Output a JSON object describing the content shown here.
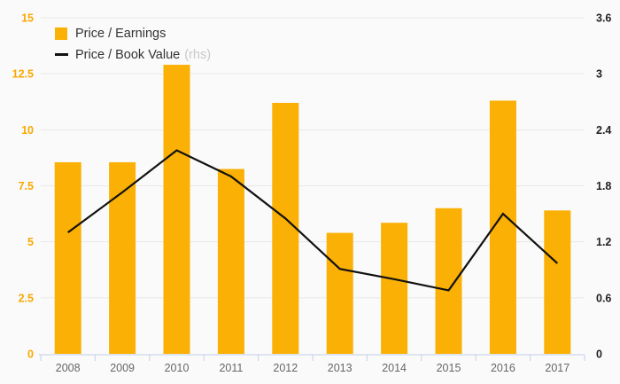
{
  "page": {
    "background": "#fafafa",
    "plot_background": "#fafafa"
  },
  "legend": {
    "items": [
      {
        "label": "Price / Earnings",
        "suffix": "",
        "marker": "square",
        "color": "#FAB005"
      },
      {
        "label": "Price / Book Value",
        "suffix": "(rhs)",
        "marker": "line",
        "color": "#111111"
      }
    ]
  },
  "chart_data": {
    "type": "bar",
    "subtype": "bar+line combo",
    "categories": [
      "2008",
      "2009",
      "2010",
      "2011",
      "2012",
      "2013",
      "2014",
      "2015",
      "2016",
      "2017"
    ],
    "series": [
      {
        "name": "Price / Earnings",
        "type": "bar",
        "axis": "left",
        "color": "#FAB005",
        "values": [
          8.55,
          8.55,
          12.9,
          8.25,
          11.2,
          5.4,
          5.85,
          6.5,
          11.3,
          6.4
        ]
      },
      {
        "name": "Price / Book Value (rhs)",
        "type": "line",
        "axis": "right",
        "color": "#111111",
        "values": [
          1.3,
          1.73,
          2.18,
          1.9,
          1.45,
          0.91,
          0.8,
          0.68,
          1.5,
          0.97
        ]
      }
    ],
    "left_axis": {
      "min": 0,
      "max": 15,
      "step": 2.5,
      "tick_labels": [
        "0",
        "2.5",
        "5",
        "7.5",
        "10",
        "12.5",
        "15"
      ],
      "label_color": "#F9A800"
    },
    "right_axis": {
      "min": 0,
      "max": 3.6,
      "step": 0.6,
      "tick_labels": [
        "0",
        "0.6",
        "1.2",
        "1.8",
        "2.4",
        "3",
        "3.6"
      ],
      "label_color": "#222222"
    },
    "x_axis": {
      "label_color": "#666666",
      "axis_line_color": "#ccd6eb"
    },
    "grid": {
      "on": true,
      "color": "#e8e8e8"
    },
    "legend_position": "top-left",
    "title": "",
    "xlabel": "",
    "ylabel": ""
  }
}
